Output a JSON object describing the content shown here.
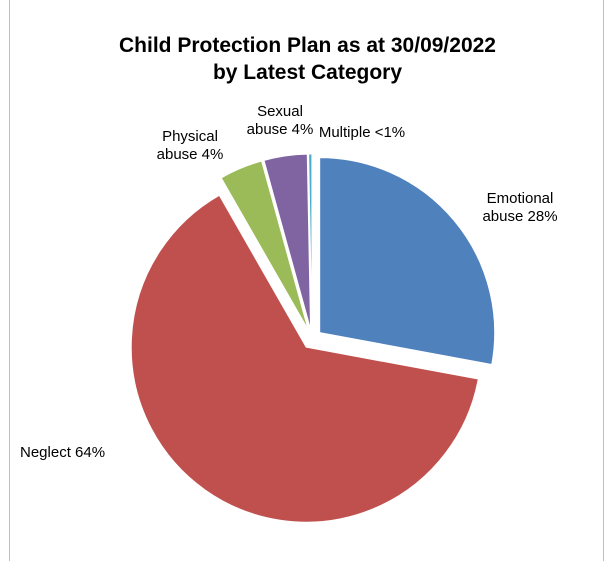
{
  "chart_data": {
    "type": "pie",
    "title_lines": [
      "Child Protection Plan as at 30/09/2022",
      "by Latest Category"
    ],
    "slices": [
      {
        "category": "Emotional abuse",
        "label_lines": [
          "Emotional",
          "abuse 28%"
        ],
        "value": 28,
        "color": "#4F81BD"
      },
      {
        "category": "Neglect",
        "label_lines": [
          "Neglect 64%"
        ],
        "value": 64,
        "color": "#C0504D"
      },
      {
        "category": "Physical abuse",
        "label_lines": [
          "Physical",
          "abuse 4%"
        ],
        "value": 4,
        "color": "#9BBB59"
      },
      {
        "category": "Sexual abuse",
        "label_lines": [
          "Sexual",
          "abuse 4%"
        ],
        "value": 4,
        "color": "#8064A2"
      },
      {
        "category": "Multiple",
        "label_lines": [
          "Multiple <1%"
        ],
        "value": 0.3,
        "color": "#4BACC6"
      }
    ]
  }
}
